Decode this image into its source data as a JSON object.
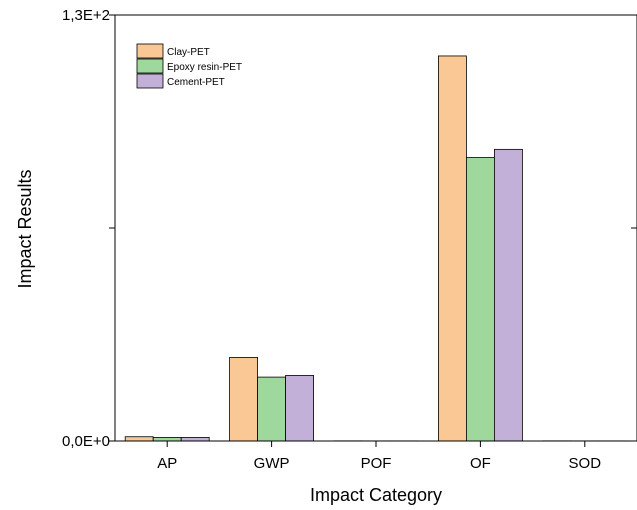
{
  "chart_data": {
    "type": "bar",
    "title": "",
    "xlabel": "Impact Category",
    "ylabel": "Impact Results",
    "categories": [
      "AP",
      "GWP",
      "POF",
      "OF",
      "SOD"
    ],
    "series": [
      {
        "name": "Clay-PET",
        "color": "#f9c894",
        "values": [
          1.3,
          25.5,
          0.05,
          117.5,
          0.05
        ]
      },
      {
        "name": "Epoxy resin-PET",
        "color": "#9ed89c",
        "values": [
          1.1,
          19.5,
          0.04,
          86.5,
          0.04
        ]
      },
      {
        "name": "Cement-PET",
        "color": "#c2b0d8",
        "values": [
          1.1,
          20.0,
          0.04,
          89.0,
          0.04
        ]
      }
    ],
    "ylim": [
      0,
      130
    ],
    "y_tick_labels": [
      "0,0E+0",
      "1,3E+2"
    ],
    "grid": false,
    "legend_position": "top-left"
  }
}
